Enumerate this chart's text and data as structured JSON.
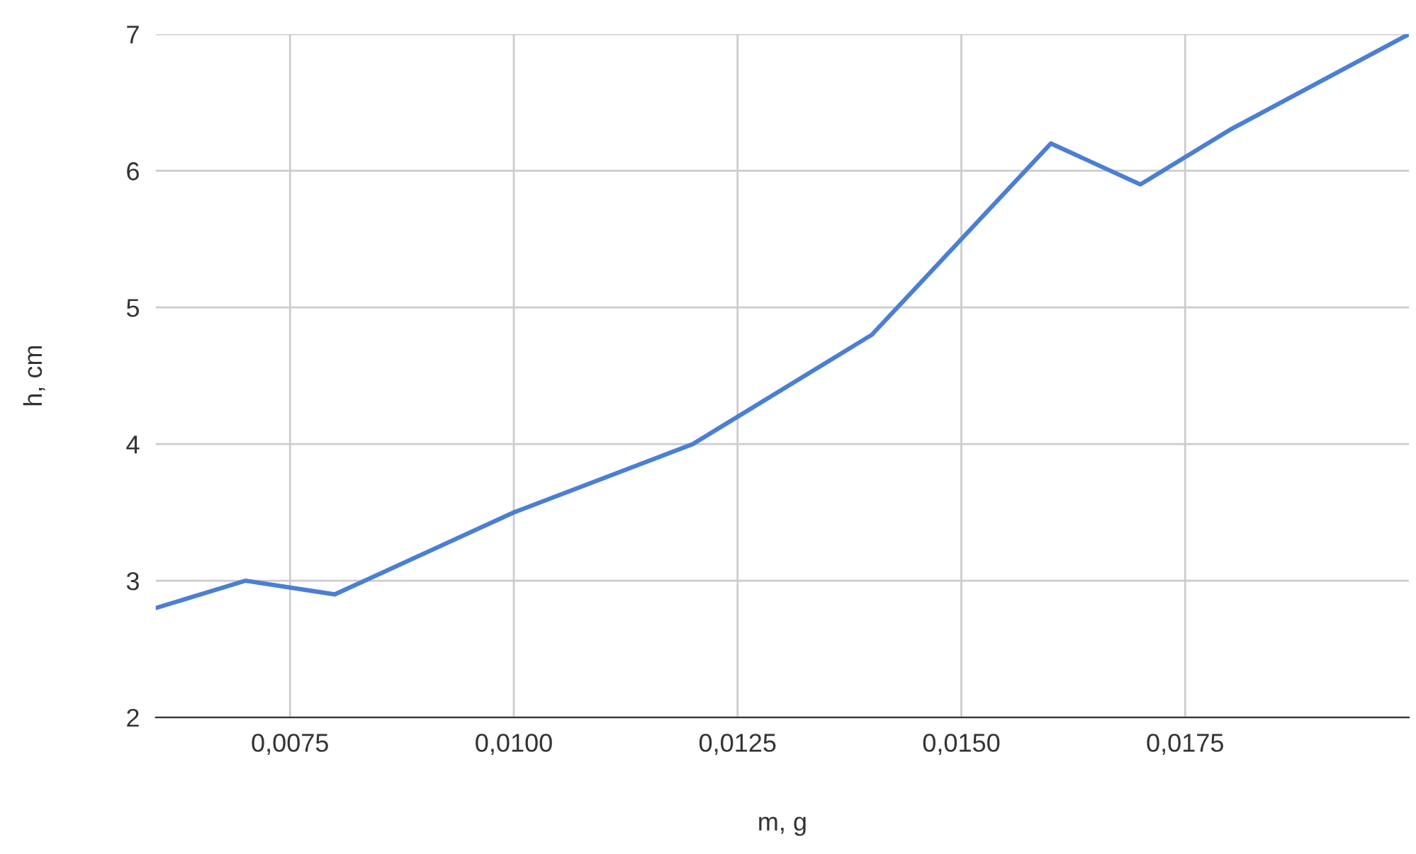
{
  "chart_data": {
    "type": "line",
    "xlabel": "m, g",
    "ylabel": "h, cm",
    "x": [
      0.006,
      0.007,
      0.008,
      0.01,
      0.012,
      0.014,
      0.016,
      0.017,
      0.018,
      0.02
    ],
    "series": [
      {
        "color": "#4a7fd4",
        "values": [
          2.8,
          3.0,
          2.9,
          3.5,
          4.0,
          4.8,
          6.2,
          5.9,
          6.3,
          7.0
        ]
      }
    ],
    "xlim": [
      0.006,
      0.02
    ],
    "xticks": [
      {
        "value": 0.0075,
        "label": "0,0075"
      },
      {
        "value": 0.01,
        "label": "0,0100"
      },
      {
        "value": 0.0125,
        "label": "0,0125"
      },
      {
        "value": 0.015,
        "label": "0,0150"
      },
      {
        "value": 0.0175,
        "label": "0,0175"
      }
    ],
    "ylim": [
      2,
      7
    ],
    "yticks": [
      2,
      3,
      4,
      5,
      6,
      7
    ],
    "grid": true,
    "marker": "none",
    "line_style": "solid"
  }
}
